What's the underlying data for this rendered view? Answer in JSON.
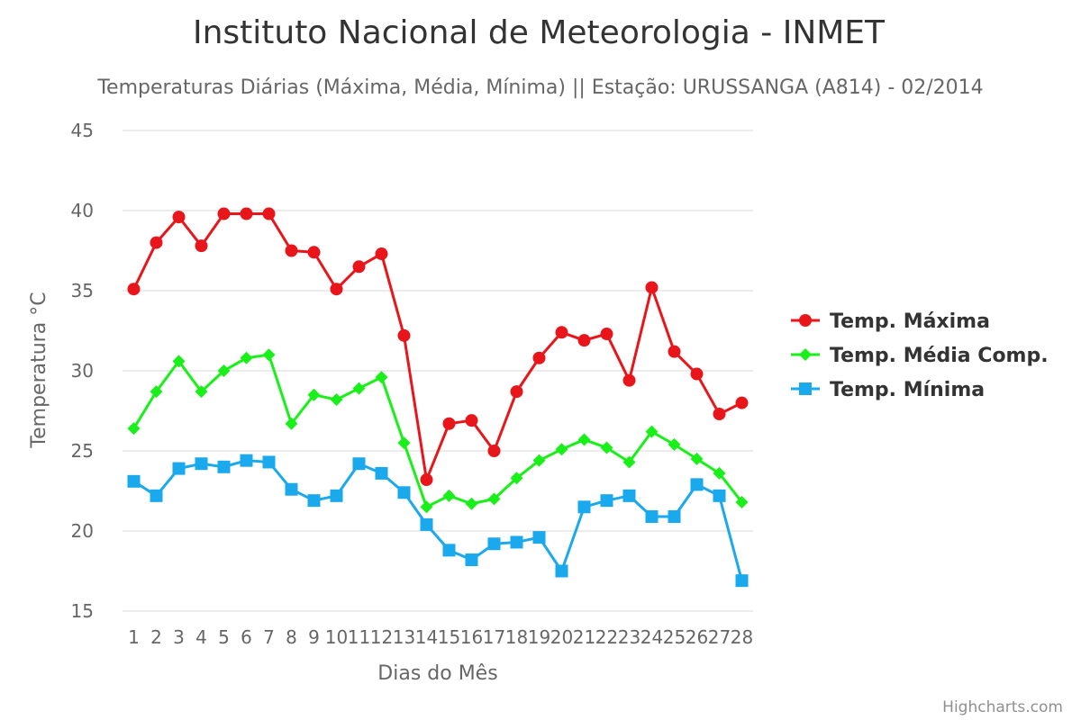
{
  "chart_data": {
    "type": "line",
    "title": "Instituto Nacional de Meteorologia - INMET",
    "subtitle": "Temperaturas Diárias (Máxima, Média, Mínima) || Estação: URUSSANGA (A814) - 02/2014",
    "xlabel": "Dias do Mês",
    "ylabel": "Temperatura °C",
    "ylim": [
      15,
      45
    ],
    "yticks": [
      15,
      20,
      25,
      30,
      35,
      40,
      45
    ],
    "grid": true,
    "legend_position": "right",
    "categories": [
      "1",
      "2",
      "3",
      "4",
      "5",
      "6",
      "7",
      "8",
      "9",
      "10",
      "11",
      "12",
      "13",
      "14",
      "15",
      "16",
      "17",
      "18",
      "19",
      "20",
      "21",
      "22",
      "23",
      "24",
      "25",
      "26",
      "27",
      "28"
    ],
    "series": [
      {
        "name": "Temp. Máxima",
        "color": "#e8161b",
        "marker": "circle",
        "values": [
          35.1,
          38.0,
          39.6,
          37.8,
          39.8,
          39.8,
          39.8,
          37.5,
          37.4,
          35.1,
          36.5,
          37.3,
          32.2,
          23.2,
          26.7,
          26.9,
          25.0,
          28.7,
          30.8,
          32.4,
          31.9,
          32.3,
          29.4,
          35.2,
          31.2,
          29.8,
          27.3,
          28.0
        ]
      },
      {
        "name": "Temp. Média Comp.",
        "color": "#19f019",
        "marker": "diamond",
        "values": [
          26.4,
          28.7,
          30.6,
          28.7,
          30.0,
          30.8,
          31.0,
          26.7,
          28.5,
          28.2,
          28.9,
          29.6,
          25.5,
          21.5,
          22.2,
          21.7,
          22.0,
          23.3,
          24.4,
          25.1,
          25.7,
          25.2,
          24.3,
          26.2,
          25.4,
          24.5,
          23.6,
          21.8
        ]
      },
      {
        "name": "Temp. Mínima",
        "color": "#1aa9ec",
        "marker": "square",
        "values": [
          23.1,
          22.2,
          23.9,
          24.2,
          24.0,
          24.4,
          24.3,
          22.6,
          21.9,
          22.2,
          24.2,
          23.6,
          22.4,
          20.4,
          18.8,
          18.2,
          19.2,
          19.3,
          19.6,
          17.5,
          21.5,
          21.9,
          22.2,
          20.9,
          20.9,
          22.9,
          22.2,
          16.9
        ]
      }
    ]
  },
  "credits": "Highcharts.com"
}
